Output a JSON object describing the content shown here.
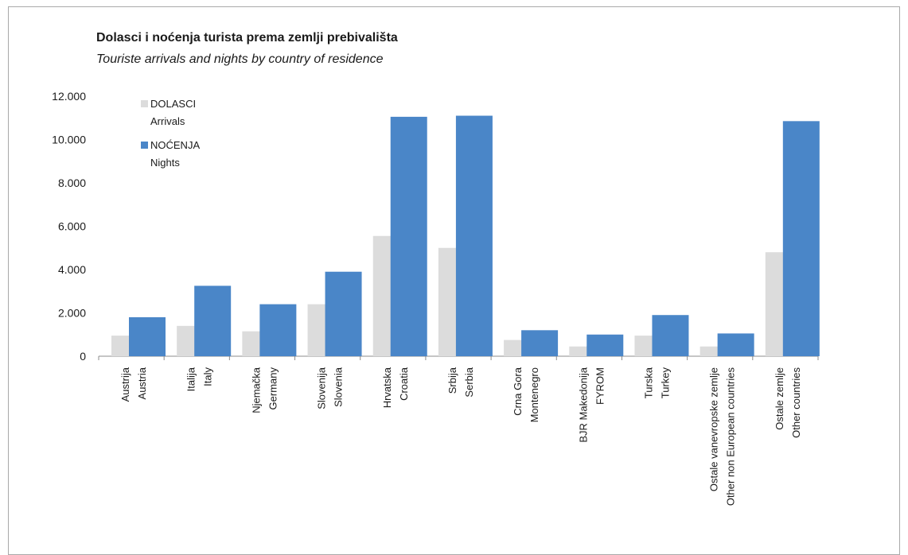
{
  "chart_data": {
    "type": "bar",
    "title": "Dolasci i noćenja turista prema zemlji prebivališta",
    "subtitle": "Touriste arrivals and nights by country of residence",
    "categories": [
      [
        "Austrija",
        "Austria"
      ],
      [
        "Italija",
        "Italy"
      ],
      [
        "Njemačka",
        "Germany"
      ],
      [
        "Slovenija",
        "Slovenia"
      ],
      [
        "Hrvatska",
        "Croatia"
      ],
      [
        "Srbija",
        "Serbia"
      ],
      [
        "Crna Gora",
        "Montenegro"
      ],
      [
        "BJR Makedonija",
        "FYROM"
      ],
      [
        "Turska",
        "Turkey"
      ],
      [
        "Ostale vanevropske zemlje",
        "Other non European countries"
      ],
      [
        "Ostale zemlje",
        "Other countries"
      ]
    ],
    "series": [
      {
        "name": [
          "DOLASCI",
          "Arrivals"
        ],
        "color": "#dcdcdc",
        "values": [
          950,
          1400,
          1150,
          2400,
          5550,
          5000,
          750,
          450,
          950,
          450,
          4800
        ]
      },
      {
        "name": [
          "NOĆENJA",
          "Nights"
        ],
        "color": "#4a86c8",
        "values": [
          1800,
          3250,
          2400,
          3900,
          11050,
          11100,
          1200,
          1000,
          1900,
          1050,
          10850
        ]
      }
    ],
    "ylim": [
      0,
      12000
    ],
    "yticks": [
      "0",
      "2.000",
      "4.000",
      "6.000",
      "8.000",
      "10.000",
      "12.000"
    ],
    "legend_position": "top-left",
    "grid": false
  }
}
